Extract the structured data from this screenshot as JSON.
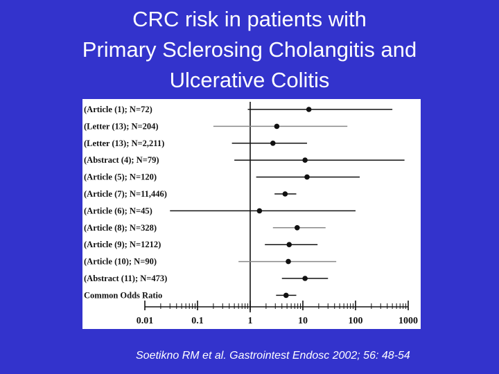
{
  "slide": {
    "title_lines": [
      "CRC risk in patients with",
      "Primary Sclerosing Cholangitis and",
      "Ulcerative Colitis"
    ],
    "citation": "Soetikno RM et al. Gastrointest Endosc 2002; 56: 48-54",
    "colors": {
      "background": "#3333cc",
      "text": "#ffffff",
      "plot_bg": "#ffffff",
      "ink": "#111111"
    }
  },
  "chart_data": {
    "type": "forest",
    "title": "",
    "xlabel": "",
    "ylabel": "",
    "x_scale": "log",
    "xlim": [
      0.01,
      1000
    ],
    "x_ticks": [
      {
        "value": 0.01,
        "label": "0.01"
      },
      {
        "value": 0.1,
        "label": "0.1"
      },
      {
        "value": 1,
        "label": "1"
      },
      {
        "value": 10,
        "label": "10"
      },
      {
        "value": 100,
        "label": "100"
      },
      {
        "value": 1000,
        "label": "1000"
      }
    ],
    "reference_line": 1,
    "rows": [
      {
        "label": "(Article (1); N=72)",
        "or": 13,
        "ci": [
          0.9,
          500
        ],
        "line_color": "#111111"
      },
      {
        "label": "(Letter (13); N=204)",
        "or": 3.2,
        "ci": [
          0.2,
          70
        ],
        "line_color": "#888888"
      },
      {
        "label": "(Letter (13); N=2,211)",
        "or": 2.7,
        "ci": [
          0.45,
          12
        ],
        "line_color": "#111111"
      },
      {
        "label": "(Abstract (4); N=79)",
        "or": 11,
        "ci": [
          0.5,
          850
        ],
        "line_color": "#111111"
      },
      {
        "label": "(Article (5); N=120)",
        "or": 12,
        "ci": [
          1.3,
          120
        ],
        "line_color": "#111111"
      },
      {
        "label": "(Article (7); N=11,446)",
        "or": 4.6,
        "ci": [
          2.9,
          7.5
        ],
        "line_color": "#111111"
      },
      {
        "label": "(Article (6); N=45)",
        "or": 1.5,
        "ci": [
          0.03,
          100
        ],
        "line_color": "#111111"
      },
      {
        "label": "(Article (8); N=328)",
        "or": 7.8,
        "ci": [
          2.7,
          27
        ],
        "line_color": "#888888"
      },
      {
        "label": "(Article (9); N=1212)",
        "or": 5.5,
        "ci": [
          1.9,
          19
        ],
        "line_color": "#111111"
      },
      {
        "label": "(Article (10); N=90)",
        "or": 5.3,
        "ci": [
          0.6,
          43
        ],
        "line_color": "#888888"
      },
      {
        "label": "(Abstract (11); N=473)",
        "or": 11,
        "ci": [
          4,
          30
        ],
        "line_color": "#111111"
      },
      {
        "label": "Common Odds Ratio",
        "or": 4.8,
        "ci": [
          3.1,
          7.5
        ],
        "line_color": "#111111"
      }
    ]
  }
}
